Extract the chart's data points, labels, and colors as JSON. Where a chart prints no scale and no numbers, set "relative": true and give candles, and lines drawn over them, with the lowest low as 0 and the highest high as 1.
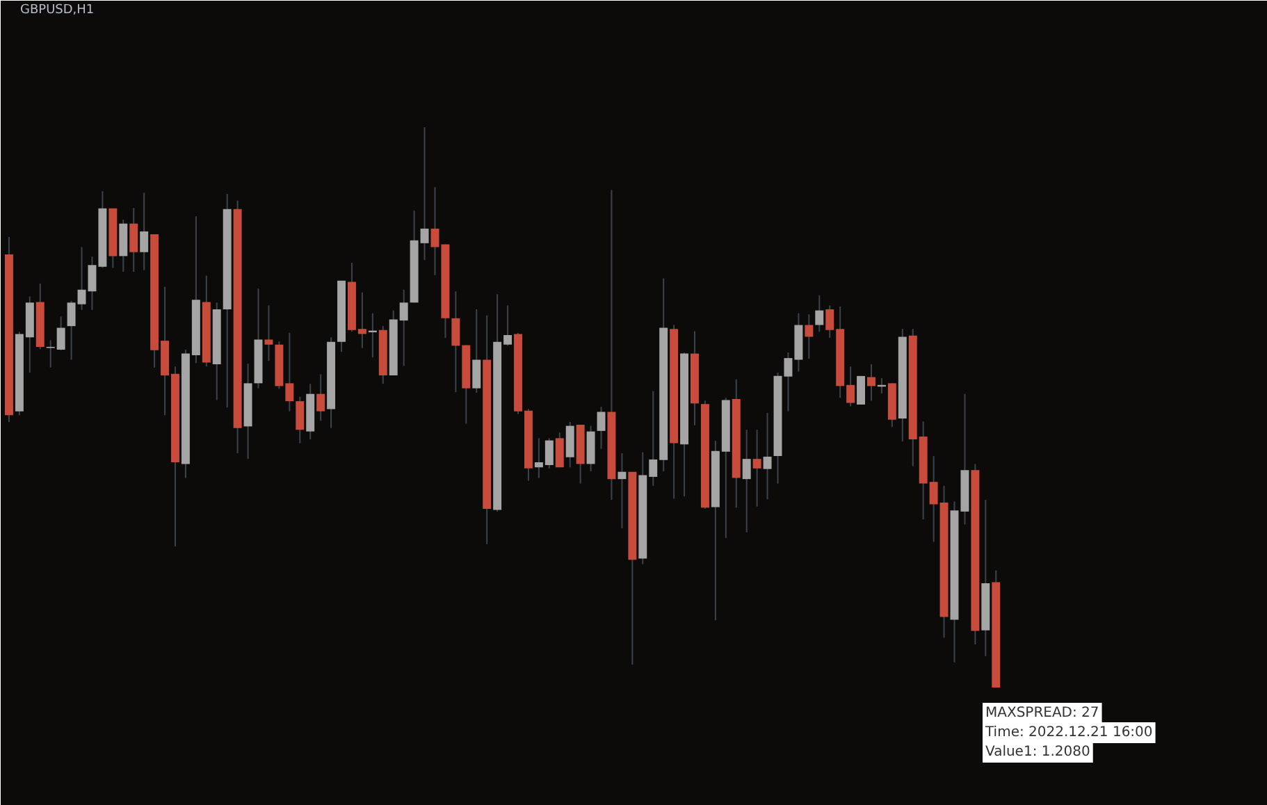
{
  "chart_data": {
    "type": "candlestick",
    "title": "GBPUSD,H1",
    "relative": true,
    "grid": false,
    "annotations": [
      "MAXSPREAD: 27",
      "Time: 2022.12.21 16:00",
      "Value1: 1.2080"
    ],
    "categories": [
      null,
      null,
      null,
      null,
      null,
      null,
      null,
      null,
      null,
      null,
      null,
      null,
      null,
      null,
      null,
      null,
      null,
      null,
      null,
      null,
      null,
      null,
      null,
      null,
      null,
      null,
      null,
      null,
      null,
      null,
      null,
      null,
      null,
      null,
      null,
      null,
      null,
      null,
      null,
      null,
      null,
      null,
      null,
      null,
      null,
      null,
      null,
      null,
      null,
      null,
      null,
      null,
      null,
      null,
      null,
      null,
      null,
      null,
      null,
      null,
      null,
      null,
      null,
      null,
      null,
      null,
      null,
      null,
      null,
      null,
      null,
      null,
      null,
      null,
      null,
      null,
      null,
      null,
      null,
      null,
      null,
      null,
      null,
      null,
      null,
      null,
      null,
      null,
      null,
      null,
      null,
      null,
      null,
      null,
      null,
      null
    ],
    "ohlc": [
      [
        0.773,
        0.804,
        0.474,
        0.486
      ],
      [
        0.493,
        0.635,
        0.486,
        0.631
      ],
      [
        0.625,
        0.698,
        0.562,
        0.687
      ],
      [
        0.688,
        0.721,
        0.604,
        0.608
      ],
      [
        0.606,
        0.62,
        0.571,
        0.608
      ],
      [
        0.603,
        0.662,
        0.602,
        0.642
      ],
      [
        0.645,
        0.69,
        0.585,
        0.687
      ],
      [
        0.684,
        0.786,
        0.674,
        0.71
      ],
      [
        0.707,
        0.769,
        0.674,
        0.754
      ],
      [
        0.751,
        0.886,
        0.749,
        0.855
      ],
      [
        0.855,
        0.855,
        0.749,
        0.77
      ],
      [
        0.77,
        0.835,
        0.742,
        0.828
      ],
      [
        0.828,
        0.856,
        0.742,
        0.777
      ],
      [
        0.777,
        0.883,
        0.745,
        0.814
      ],
      [
        0.809,
        0.809,
        0.571,
        0.602
      ],
      [
        0.619,
        0.715,
        0.486,
        0.557
      ],
      [
        0.56,
        0.573,
        0.252,
        0.402
      ],
      [
        0.399,
        0.603,
        0.374,
        0.596
      ],
      [
        0.593,
        0.841,
        0.579,
        0.692
      ],
      [
        0.688,
        0.735,
        0.573,
        0.58
      ],
      [
        0.577,
        0.687,
        0.513,
        0.675
      ],
      [
        0.675,
        0.881,
        0.5,
        0.854
      ],
      [
        0.854,
        0.869,
        0.418,
        0.463
      ],
      [
        0.466,
        0.578,
        0.408,
        0.543
      ],
      [
        0.543,
        0.712,
        0.534,
        0.621
      ],
      [
        0.621,
        0.682,
        0.583,
        0.612
      ],
      [
        0.612,
        0.618,
        0.533,
        0.538
      ],
      [
        0.543,
        0.633,
        0.493,
        0.511
      ],
      [
        0.511,
        0.519,
        0.436,
        0.46
      ],
      [
        0.457,
        0.542,
        0.443,
        0.524
      ],
      [
        0.524,
        0.559,
        0.476,
        0.493
      ],
      [
        0.497,
        0.625,
        0.463,
        0.617
      ],
      [
        0.617,
        0.726,
        0.599,
        0.726
      ],
      [
        0.724,
        0.758,
        0.635,
        0.638
      ],
      [
        0.64,
        0.705,
        0.606,
        0.631
      ],
      [
        0.634,
        0.668,
        0.589,
        0.637
      ],
      [
        0.638,
        0.645,
        0.542,
        0.557
      ],
      [
        0.557,
        0.673,
        0.557,
        0.657
      ],
      [
        0.655,
        0.71,
        0.574,
        0.687
      ],
      [
        0.687,
        0.851,
        0.687,
        0.798
      ],
      [
        0.793,
        1.0,
        0.763,
        0.819
      ],
      [
        0.819,
        0.893,
        0.736,
        0.786
      ],
      [
        0.791,
        0.791,
        0.624,
        0.659
      ],
      [
        0.659,
        0.707,
        0.527,
        0.61
      ],
      [
        0.611,
        0.611,
        0.471,
        0.534
      ],
      [
        0.534,
        0.675,
        0.526,
        0.585
      ],
      [
        0.585,
        0.664,
        0.256,
        0.319
      ],
      [
        0.317,
        0.702,
        0.314,
        0.617
      ],
      [
        0.612,
        0.682,
        0.61,
        0.629
      ],
      [
        0.631,
        0.633,
        0.488,
        0.493
      ],
      [
        0.494,
        0.497,
        0.369,
        0.391
      ],
      [
        0.393,
        0.445,
        0.374,
        0.402
      ],
      [
        0.397,
        0.445,
        0.391,
        0.441
      ],
      [
        0.445,
        0.455,
        0.393,
        0.393
      ],
      [
        0.411,
        0.474,
        0.393,
        0.467
      ],
      [
        0.469,
        0.469,
        0.364,
        0.399
      ],
      [
        0.399,
        0.467,
        0.386,
        0.457
      ],
      [
        0.458,
        0.501,
        0.426,
        0.492
      ],
      [
        0.492,
        0.888,
        0.335,
        0.372
      ],
      [
        0.372,
        0.418,
        0.284,
        0.385
      ],
      [
        0.385,
        0.385,
        0.041,
        0.228
      ],
      [
        0.23,
        0.42,
        0.22,
        0.379
      ],
      [
        0.376,
        0.529,
        0.36,
        0.407
      ],
      [
        0.406,
        0.73,
        0.386,
        0.642
      ],
      [
        0.64,
        0.647,
        0.337,
        0.436
      ],
      [
        0.434,
        0.598,
        0.341,
        0.596
      ],
      [
        0.596,
        0.636,
        0.468,
        0.507
      ],
      [
        0.506,
        0.512,
        0.319,
        0.321
      ],
      [
        0.322,
        0.44,
        0.12,
        0.422
      ],
      [
        0.421,
        0.517,
        0.267,
        0.513
      ],
      [
        0.515,
        0.55,
        0.321,
        0.374
      ],
      [
        0.372,
        0.46,
        0.277,
        0.408
      ],
      [
        0.408,
        0.46,
        0.323,
        0.391
      ],
      [
        0.39,
        0.49,
        0.336,
        0.412
      ],
      [
        0.413,
        0.562,
        0.364,
        0.556
      ],
      [
        0.555,
        0.598,
        0.493,
        0.588
      ],
      [
        0.585,
        0.668,
        0.564,
        0.647
      ],
      [
        0.647,
        0.666,
        0.587,
        0.626
      ],
      [
        0.647,
        0.7,
        0.635,
        0.673
      ],
      [
        0.675,
        0.682,
        0.624,
        0.638
      ],
      [
        0.64,
        0.68,
        0.517,
        0.538
      ],
      [
        0.54,
        0.573,
        0.502,
        0.508
      ],
      [
        0.505,
        0.556,
        0.505,
        0.556
      ],
      [
        0.554,
        0.577,
        0.512,
        0.538
      ],
      [
        0.537,
        0.552,
        0.525,
        0.54
      ],
      [
        0.543,
        0.543,
        0.465,
        0.478
      ],
      [
        0.48,
        0.64,
        0.439,
        0.626
      ],
      [
        0.628,
        0.64,
        0.395,
        0.443
      ],
      [
        0.448,
        0.475,
        0.3,
        0.364
      ],
      [
        0.367,
        0.413,
        0.26,
        0.327
      ],
      [
        0.33,
        0.36,
        0.089,
        0.126
      ],
      [
        0.121,
        0.332,
        0.045,
        0.316
      ],
      [
        0.314,
        0.524,
        0.291,
        0.388
      ],
      [
        0.388,
        0.399,
        0.077,
        0.101
      ],
      [
        0.102,
        0.335,
        0.056,
        0.186
      ],
      [
        0.188,
        0.209,
        0.0,
        0.0
      ]
    ],
    "colors": [
      "#c94b3b",
      "#a5a5a5",
      "#a5a5a5",
      "#c94b3b",
      "#a5a5a5",
      "#a5a5a5",
      "#a5a5a5",
      "#a5a5a5",
      "#a5a5a5",
      "#a5a5a5",
      "#c94b3b",
      "#a5a5a5",
      "#c94b3b",
      "#a5a5a5",
      "#c94b3b",
      "#c94b3b",
      "#c94b3b",
      "#a5a5a5",
      "#a5a5a5",
      "#c94b3b",
      "#a5a5a5",
      "#a5a5a5",
      "#c94b3b",
      "#a5a5a5",
      "#a5a5a5",
      "#c94b3b",
      "#c94b3b",
      "#c94b3b",
      "#c94b3b",
      "#a5a5a5",
      "#c94b3b",
      "#a5a5a5",
      "#a5a5a5",
      "#c94b3b",
      "#c94b3b",
      "#a5a5a5",
      "#c94b3b",
      "#a5a5a5",
      "#a5a5a5",
      "#a5a5a5",
      "#a5a5a5",
      "#c94b3b",
      "#c94b3b",
      "#c94b3b",
      "#c94b3b",
      "#a5a5a5",
      "#c94b3b",
      "#a5a5a5",
      "#a5a5a5",
      "#c94b3b",
      "#c94b3b",
      "#a5a5a5",
      "#a5a5a5",
      "#c94b3b",
      "#a5a5a5",
      "#c94b3b",
      "#a5a5a5",
      "#a5a5a5",
      "#c94b3b",
      "#a5a5a5",
      "#c94b3b",
      "#a5a5a5",
      "#a5a5a5",
      "#a5a5a5",
      "#c94b3b",
      "#a5a5a5",
      "#c94b3b",
      "#c94b3b",
      "#a5a5a5",
      "#a5a5a5",
      "#c94b3b",
      "#a5a5a5",
      "#c94b3b",
      "#a5a5a5",
      "#a5a5a5",
      "#a5a5a5",
      "#a5a5a5",
      "#c94b3b",
      "#a5a5a5",
      "#c94b3b",
      "#c94b3b",
      "#c94b3b",
      "#a5a5a5",
      "#c94b3b",
      "#a5a5a5",
      "#c94b3b",
      "#a5a5a5",
      "#c94b3b",
      "#c94b3b",
      "#c94b3b",
      "#c94b3b",
      "#a5a5a5",
      "#a5a5a5",
      "#c94b3b",
      "#a5a5a5",
      "#c94b3b"
    ]
  }
}
